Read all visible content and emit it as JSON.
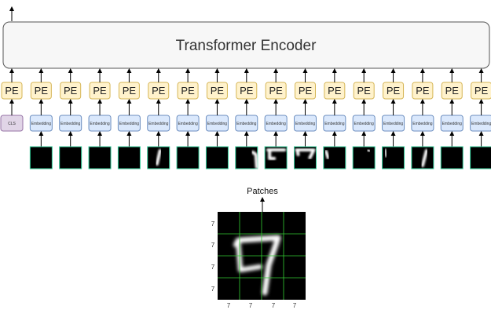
{
  "encoder": {
    "label": "Transformer Encoder"
  },
  "pe_label": "PE",
  "cls_label": "CLS",
  "embedding_label": "Embedding",
  "patches_label": "Patches",
  "grid": {
    "rows": 4,
    "cols": 4,
    "row_labels": [
      "7",
      "7",
      "7",
      "7"
    ],
    "col_labels": [
      "7",
      "7",
      "7",
      "7"
    ]
  },
  "colors": {
    "pe_fill": "#fff2cc",
    "pe_stroke": "#d6b656",
    "emb_fill": "#dae8fc",
    "emb_stroke": "#6c8ebf",
    "cls_fill": "#e1d5e7",
    "cls_stroke": "#9673a6",
    "patch_border": "#33cc99",
    "grid_line": "#33cc33"
  },
  "patches": [
    {
      "index": 1,
      "shape": "none"
    },
    {
      "index": 2,
      "shape": "none"
    },
    {
      "index": 3,
      "shape": "none"
    },
    {
      "index": 4,
      "shape": "none"
    },
    {
      "index": 5,
      "shape": "stroke-left"
    },
    {
      "index": 6,
      "shape": "none"
    },
    {
      "index": 7,
      "shape": "none"
    },
    {
      "index": 8,
      "shape": "corner-right"
    },
    {
      "index": 9,
      "shape": "bracket-top"
    },
    {
      "index": 10,
      "shape": "seven-top"
    },
    {
      "index": 11,
      "shape": "corner-left"
    },
    {
      "index": 12,
      "shape": "dots"
    },
    {
      "index": 13,
      "shape": "tick-top"
    },
    {
      "index": 14,
      "shape": "slash"
    },
    {
      "index": 15,
      "shape": "none"
    },
    {
      "index": 16,
      "shape": "none"
    }
  ]
}
